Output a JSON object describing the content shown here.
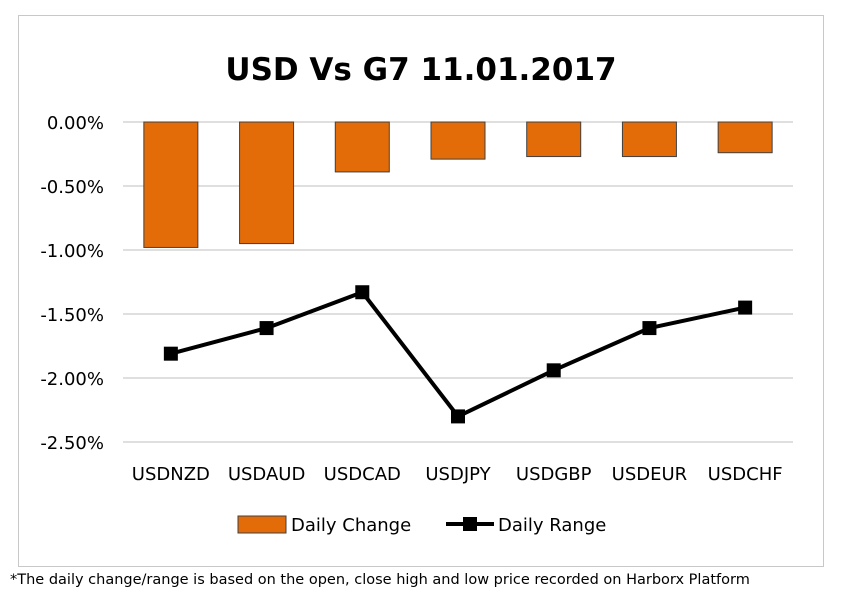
{
  "chart_data": {
    "type": "bar+line",
    "title": "USD Vs G7 11.01.2017",
    "categories": [
      "USDNZD",
      "USDAUD",
      "USDCAD",
      "USDJPY",
      "USDGBP",
      "USDEUR",
      "USDCHF"
    ],
    "series": [
      {
        "name": "Daily Change",
        "type": "bar",
        "color": "#e36c09",
        "values": [
          -0.98,
          -0.95,
          -0.39,
          -0.29,
          -0.27,
          -0.27,
          -0.24
        ]
      },
      {
        "name": "Daily Range",
        "type": "line",
        "color": "#000000",
        "marker": "square",
        "values": [
          -1.81,
          -1.61,
          -1.33,
          -2.3,
          -1.94,
          -1.61,
          -1.45
        ]
      }
    ],
    "ylim": [
      -2.5,
      0
    ],
    "yticks": [
      0,
      -0.5,
      -1.0,
      -1.5,
      -2.0,
      -2.5
    ],
    "ytick_labels": [
      "0.00%",
      "-0.50%",
      "-1.00%",
      "-1.50%",
      "-2.00%",
      "-2.50%"
    ],
    "grid": true,
    "legend": "bottom"
  },
  "footnote": "*The daily change/range is based on the open, close high and low price recorded on Harborx Platform"
}
